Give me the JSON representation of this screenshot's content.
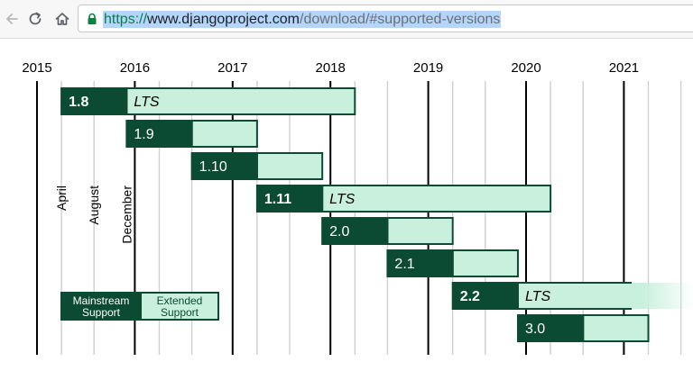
{
  "browser": {
    "url": {
      "scheme": "https://",
      "host": "www.djangoproject.com",
      "path": "/download/#supported-versions"
    },
    "icons": {
      "back": "back-arrow-icon",
      "reload": "reload-icon",
      "home": "home-icon",
      "lock": "lock-icon"
    }
  },
  "timeline": {
    "years": [
      "2015",
      "2016",
      "2017",
      "2018",
      "2019",
      "2020",
      "2021"
    ],
    "month_markers": [
      {
        "label": "April",
        "year": 2015,
        "month": 4
      },
      {
        "label": "August",
        "year": 2015,
        "month": 8
      },
      {
        "label": "December",
        "year": 2015,
        "month": 12
      }
    ],
    "releases": [
      {
        "version": "1.8",
        "lts": true,
        "lts_label": "LTS",
        "release": "2015-04",
        "mainstream_end": "2015-12",
        "extended_end": "2018-04"
      },
      {
        "version": "1.9",
        "lts": false,
        "release": "2015-12",
        "mainstream_end": "2016-08",
        "extended_end": "2017-04"
      },
      {
        "version": "1.10",
        "lts": false,
        "release": "2016-08",
        "mainstream_end": "2017-04",
        "extended_end": "2017-12"
      },
      {
        "version": "1.11",
        "lts": true,
        "lts_label": "LTS",
        "release": "2017-04",
        "mainstream_end": "2017-12",
        "extended_end": "2020-04"
      },
      {
        "version": "2.0",
        "lts": false,
        "release": "2017-12",
        "mainstream_end": "2018-08",
        "extended_end": "2019-04"
      },
      {
        "version": "2.1",
        "lts": false,
        "release": "2018-08",
        "mainstream_end": "2019-04",
        "extended_end": "2019-12"
      },
      {
        "version": "2.2",
        "lts": true,
        "lts_label": "LTS",
        "release": "2019-04",
        "mainstream_end": "2019-12",
        "extended_end": "2022-04"
      },
      {
        "version": "3.0",
        "lts": false,
        "release": "2019-12",
        "mainstream_end": "2020-08",
        "extended_end": "2021-04"
      }
    ],
    "legend": {
      "mainstream": "Mainstream Support",
      "extended": "Extended Support"
    },
    "colors": {
      "mainstream": "#0c4b33",
      "extended": "#c9f0dd",
      "border": "#0c4b33",
      "year_line": "#000000",
      "month_line": "#cfcfcf",
      "text": "#000000"
    }
  }
}
